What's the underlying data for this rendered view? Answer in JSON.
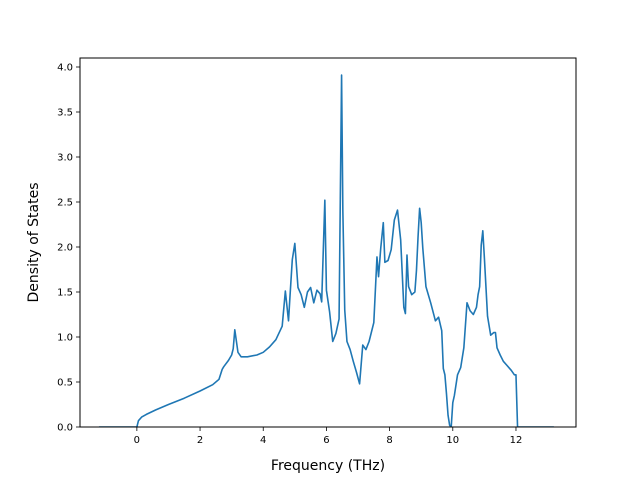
{
  "chart_data": {
    "type": "line",
    "title": "",
    "xlabel": "Frequency (THz)",
    "ylabel": "Density of States",
    "xlim": [
      -1.8,
      13.9
    ],
    "ylim": [
      0.0,
      4.1
    ],
    "xticks": [
      "0",
      "2",
      "4",
      "6",
      "8",
      "10",
      "12"
    ],
    "xtick_values": [
      0,
      2,
      4,
      6,
      8,
      10,
      12
    ],
    "yticks": [
      "0.0",
      "0.5",
      "1.0",
      "1.5",
      "2.0",
      "2.5",
      "3.0",
      "3.5",
      "4.0"
    ],
    "ytick_values": [
      0.0,
      0.5,
      1.0,
      1.5,
      2.0,
      2.5,
      3.0,
      3.5,
      4.0
    ],
    "grid": false,
    "legend": "none",
    "series": [
      {
        "color": "#1f77b4",
        "x": [
          -1.2,
          -0.5,
          0.0,
          0.05,
          0.15,
          0.3,
          0.6,
          1.0,
          1.5,
          2.0,
          2.4,
          2.6,
          2.7,
          2.75,
          2.9,
          3.0,
          3.05,
          3.1,
          3.2,
          3.3,
          3.5,
          3.8,
          4.0,
          4.2,
          4.4,
          4.6,
          4.7,
          4.8,
          4.85,
          4.92,
          5.0,
          5.1,
          5.2,
          5.3,
          5.4,
          5.5,
          5.6,
          5.7,
          5.8,
          5.85,
          5.95,
          6.0,
          6.1,
          6.2,
          6.3,
          6.4,
          6.48,
          6.52,
          6.58,
          6.65,
          6.75,
          6.85,
          6.95,
          7.05,
          7.15,
          7.25,
          7.35,
          7.5,
          7.6,
          7.65,
          7.72,
          7.8,
          7.85,
          7.95,
          8.05,
          8.15,
          8.25,
          8.35,
          8.45,
          8.5,
          8.55,
          8.6,
          8.7,
          8.8,
          8.85,
          8.9,
          8.95,
          9.0,
          9.05,
          9.15,
          9.3,
          9.45,
          9.55,
          9.65,
          9.7,
          9.75,
          9.8,
          9.85,
          9.9,
          9.95,
          10.0,
          10.05,
          10.15,
          10.25,
          10.35,
          10.45,
          10.55,
          10.65,
          10.75,
          10.8,
          10.85,
          10.9,
          10.95,
          11.0,
          11.1,
          11.2,
          11.3,
          11.35,
          11.4,
          11.5,
          11.6,
          11.7,
          11.85,
          11.95,
          12.0,
          12.05,
          12.5,
          13.2
        ],
        "y": [
          0.0,
          0.0,
          0.0,
          0.07,
          0.11,
          0.14,
          0.19,
          0.25,
          0.32,
          0.4,
          0.47,
          0.53,
          0.64,
          0.67,
          0.74,
          0.8,
          0.87,
          1.08,
          0.83,
          0.78,
          0.78,
          0.8,
          0.83,
          0.89,
          0.97,
          1.12,
          1.51,
          1.18,
          1.47,
          1.86,
          2.04,
          1.55,
          1.47,
          1.33,
          1.5,
          1.55,
          1.38,
          1.52,
          1.48,
          1.39,
          2.52,
          1.52,
          1.28,
          0.95,
          1.04,
          1.2,
          3.91,
          2.4,
          1.3,
          0.95,
          0.86,
          0.73,
          0.61,
          0.48,
          0.91,
          0.86,
          0.95,
          1.16,
          1.89,
          1.67,
          1.99,
          2.27,
          1.83,
          1.85,
          1.97,
          2.3,
          2.41,
          2.08,
          1.33,
          1.26,
          1.91,
          1.56,
          1.47,
          1.5,
          1.74,
          2.11,
          2.43,
          2.27,
          1.99,
          1.56,
          1.38,
          1.18,
          1.22,
          1.07,
          0.65,
          0.58,
          0.37,
          0.13,
          0.02,
          0.0,
          0.27,
          0.35,
          0.58,
          0.66,
          0.88,
          1.38,
          1.29,
          1.25,
          1.33,
          1.47,
          1.56,
          2.02,
          2.18,
          1.88,
          1.23,
          1.02,
          1.05,
          1.05,
          0.88,
          0.8,
          0.73,
          0.69,
          0.63,
          0.58,
          0.58,
          0.0,
          0.0,
          0.0
        ]
      }
    ]
  }
}
